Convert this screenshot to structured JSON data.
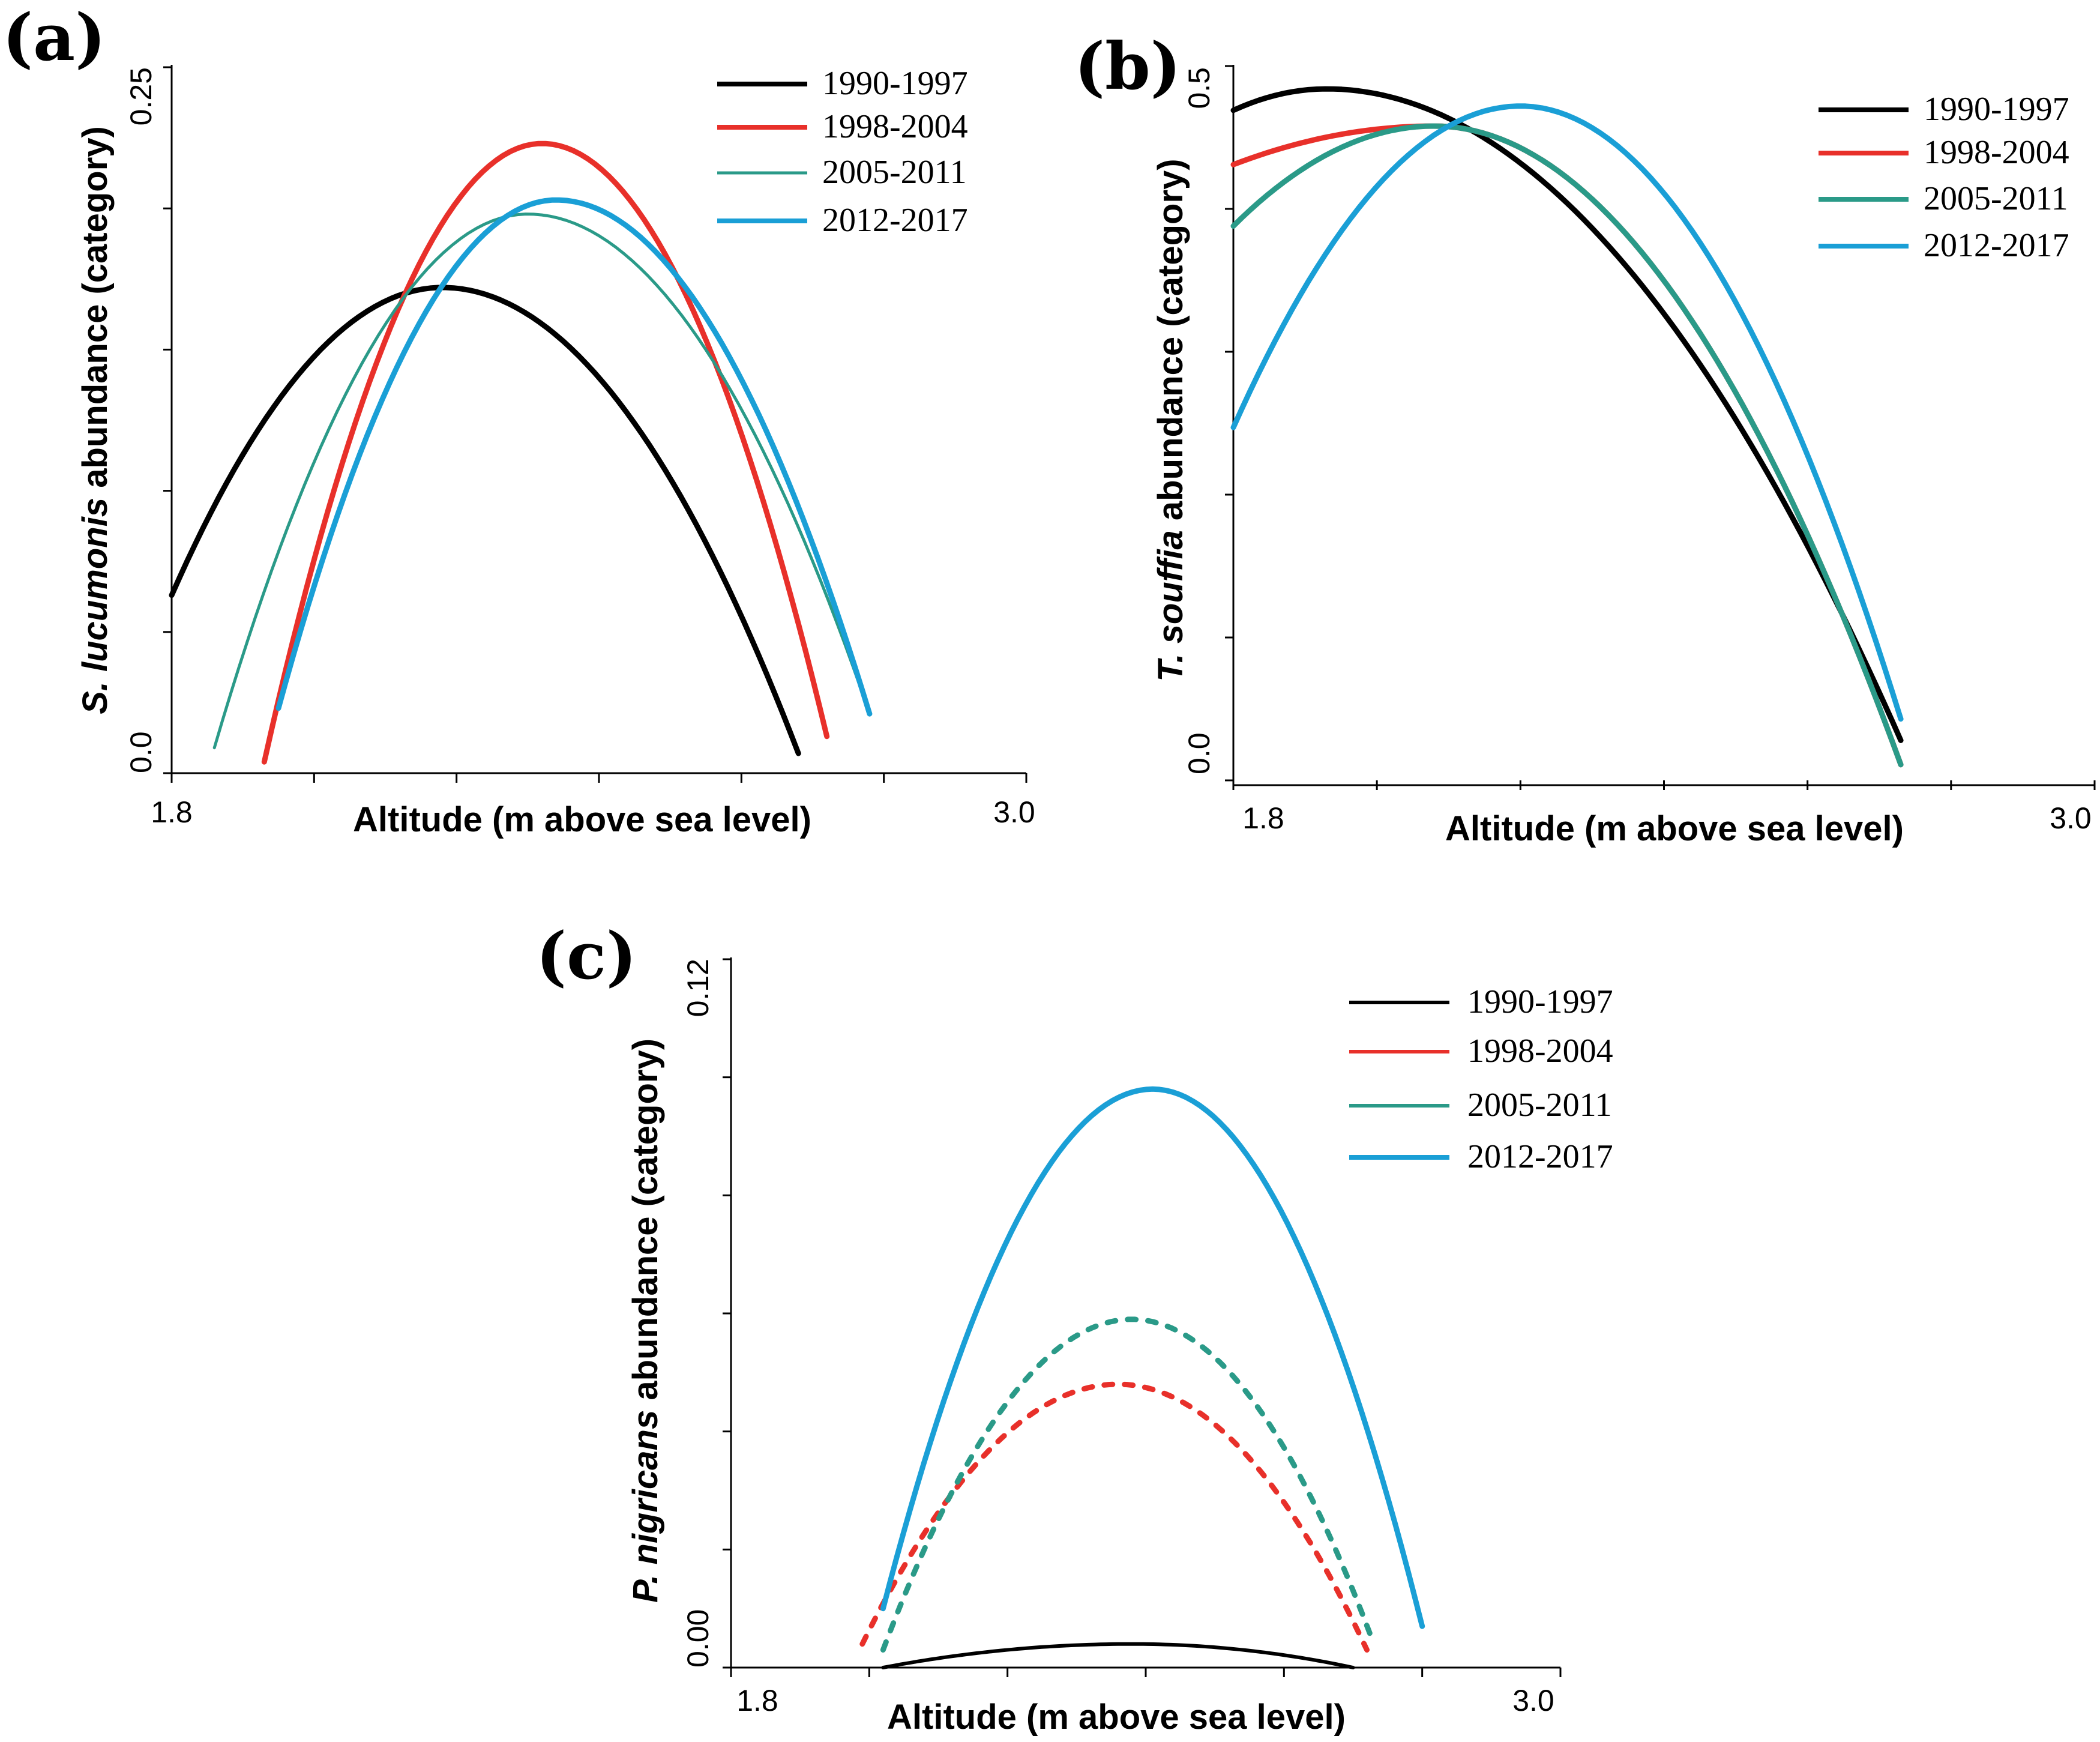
{
  "chart_data": [
    {
      "panel": "(a)",
      "type": "line",
      "title": "",
      "xlabel": "Altitude (m above sea level)",
      "ylabel_italic": "S. lucumonis",
      "ylabel_rest": " abundance (category)",
      "xlim": [
        1.8,
        3.0
      ],
      "ylim": [
        0.0,
        0.25
      ],
      "xtick_labels": [
        "1.8",
        "3.0"
      ],
      "ytick_labels": [
        "0.0",
        "0.25"
      ],
      "legend": "top-right",
      "series": [
        {
          "name": "1990-1997",
          "color": "#000000",
          "style": "solid",
          "weight": "bold",
          "x_range": [
            1.8,
            2.68
          ],
          "vertex": [
            2.18,
            0.172
          ],
          "end_values": [
            0.063,
            0.007
          ]
        },
        {
          "name": "1998-2004",
          "color": "#e8302a",
          "style": "solid",
          "weight": "bold",
          "x_range": [
            1.93,
            2.72
          ],
          "vertex": [
            2.32,
            0.223
          ],
          "end_values": [
            0.004,
            0.013
          ]
        },
        {
          "name": "2005-2011",
          "color": "#2a9a88",
          "style": "solid",
          "weight": "thin",
          "x_range": [
            1.86,
            2.78
          ],
          "vertex": [
            2.3,
            0.198
          ],
          "end_values": [
            0.009,
            0.021
          ]
        },
        {
          "name": "2012-2017",
          "color": "#1a9fd6",
          "style": "solid",
          "weight": "bold",
          "x_range": [
            1.95,
            2.78
          ],
          "vertex": [
            2.34,
            0.203
          ],
          "end_values": [
            0.023,
            0.021
          ]
        }
      ]
    },
    {
      "panel": "(b)",
      "type": "line",
      "title": "",
      "xlabel": "Altitude (m above sea level)",
      "ylabel_italic": "T. souffia",
      "ylabel_rest": " abundance (category)",
      "xlim": [
        1.8,
        3.0
      ],
      "ylim": [
        0.0,
        0.5
      ],
      "xtick_labels": [
        "1.8",
        "3.0"
      ],
      "ytick_labels": [
        "0.0",
        "0.5"
      ],
      "legend": "top-right",
      "series": [
        {
          "name": "1990-1997",
          "color": "#000000",
          "style": "solid",
          "weight": "bold",
          "x_range": [
            1.8,
            2.73
          ],
          "vertex": [
            1.93,
            0.484
          ],
          "end_values": [
            0.469,
            0.028
          ]
        },
        {
          "name": "1998-2004",
          "color": "#e8302a",
          "style": "solid",
          "weight": "bold",
          "x_range": [
            1.8,
            2.73
          ],
          "vertex": [
            2.08,
            0.458
          ],
          "end_values": [
            0.431,
            0.011
          ]
        },
        {
          "name": "2005-2011",
          "color": "#2a9a88",
          "style": "solid",
          "weight": "bold",
          "x_range": [
            1.8,
            2.73
          ],
          "vertex": [
            2.08,
            0.458
          ],
          "end_values": [
            0.388,
            0.011
          ]
        },
        {
          "name": "2012-2017",
          "color": "#1a9fd6",
          "style": "solid",
          "weight": "bold",
          "x_range": [
            1.8,
            2.73
          ],
          "vertex": [
            2.2,
            0.472
          ],
          "end_values": [
            0.247,
            0.043
          ]
        }
      ]
    },
    {
      "panel": "(c)",
      "type": "line",
      "title": "",
      "xlabel": "Altitude (m above sea level)",
      "ylabel_italic": "P. nigricans",
      "ylabel_rest": " abundance (category)",
      "xlim": [
        1.8,
        3.0
      ],
      "ylim": [
        0.0,
        0.12
      ],
      "xtick_labels": [
        "1.8",
        "3.0"
      ],
      "ytick_labels": [
        "0.00",
        "0.12"
      ],
      "legend": "top-right",
      "series": [
        {
          "name": "1990-1997",
          "color": "#000000",
          "style": "solid",
          "weight": "normal",
          "x_range": [
            2.02,
            2.7
          ],
          "vertex": [
            2.38,
            0.004
          ],
          "end_values": [
            0.0,
            0.0
          ]
        },
        {
          "name": "1998-2004",
          "color": "#e8302a",
          "style": "dotted",
          "weight": "bold",
          "x_range": [
            1.99,
            2.72
          ],
          "vertex": [
            2.36,
            0.048
          ],
          "end_values": [
            0.004,
            0.003
          ]
        },
        {
          "name": "2005-2011",
          "color": "#2a9a88",
          "style": "dotted",
          "weight": "bold",
          "x_range": [
            2.02,
            2.73
          ],
          "vertex": [
            2.38,
            0.059
          ],
          "end_values": [
            0.003,
            0.004
          ]
        },
        {
          "name": "2012-2017",
          "color": "#1a9fd6",
          "style": "solid",
          "weight": "bold",
          "x_range": [
            2.02,
            2.8
          ],
          "vertex": [
            2.41,
            0.098
          ],
          "end_values": [
            0.01,
            0.007
          ]
        }
      ]
    }
  ]
}
